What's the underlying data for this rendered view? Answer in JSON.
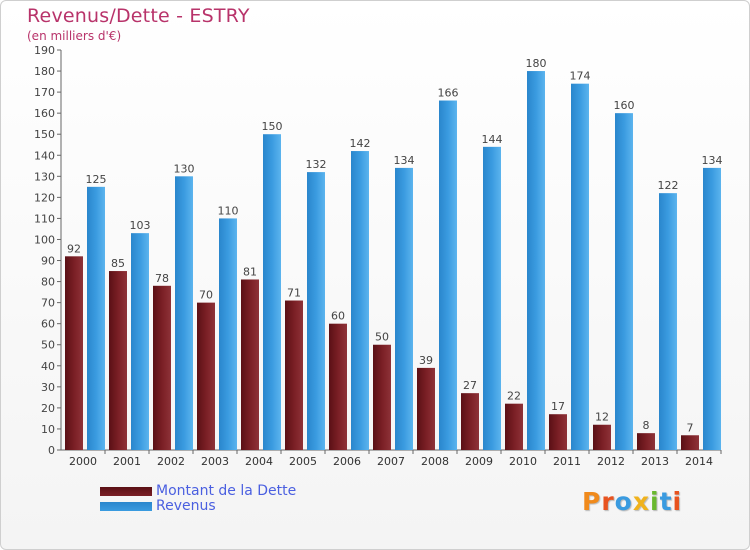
{
  "colors": {
    "dette": "#7a1f25",
    "revenus": "#3a9be0",
    "title": "#b8336a",
    "legend_text": "#4a5fe0"
  },
  "chart_data": {
    "type": "bar",
    "title": "Revenus/Dette - ESTRY",
    "subtitle": "(en milliers d'€)",
    "categories": [
      "2000",
      "2001",
      "2002",
      "2003",
      "2004",
      "2005",
      "2006",
      "2007",
      "2008",
      "2009",
      "2010",
      "2011",
      "2012",
      "2013",
      "2014"
    ],
    "series": [
      {
        "name": "Montant de la Dette",
        "values": [
          92,
          85,
          78,
          70,
          81,
          71,
          60,
          50,
          39,
          27,
          22,
          17,
          12,
          8,
          7
        ]
      },
      {
        "name": "Revenus",
        "values": [
          125,
          103,
          130,
          110,
          150,
          132,
          142,
          134,
          166,
          144,
          180,
          174,
          160,
          122,
          134
        ]
      }
    ],
    "ylim": [
      0,
      190
    ],
    "ytick_step": 10,
    "grid": false,
    "legend": "bottom-left"
  },
  "logo": {
    "text": "Proxiti"
  }
}
